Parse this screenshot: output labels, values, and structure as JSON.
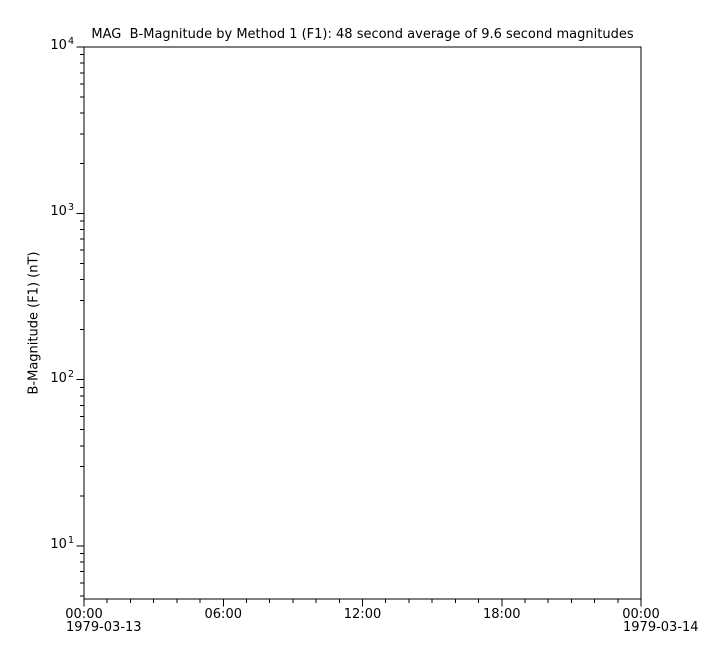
{
  "figure": {
    "background": "#ffffff",
    "axis_color": "#000000",
    "text_color": "#000000"
  },
  "chart_data": {
    "type": "line",
    "title": "MAG  B-Magnitude by Method 1 (F1): 48 second average of 9.6 second magnitudes",
    "xlabel": "",
    "ylabel": "B-Magnitude (F1) (nT)",
    "x_axis": {
      "start_date": "1979-03-13",
      "end_date": "1979-03-14",
      "range_hours": [
        0,
        24
      ],
      "minor_tick_every_hours": 1,
      "major_ticks": [
        {
          "hour": 0,
          "label": "00:00"
        },
        {
          "hour": 6,
          "label": "06:00"
        },
        {
          "hour": 12,
          "label": "12:00"
        },
        {
          "hour": 18,
          "label": "18:00"
        },
        {
          "hour": 24,
          "label": "00:00"
        }
      ],
      "date_labels": [
        {
          "hour": 0,
          "label": "1979-03-13"
        },
        {
          "hour": 24,
          "label": "1979-03-14"
        }
      ]
    },
    "y_axis": {
      "scale": "log",
      "ylim": [
        4.8,
        10000
      ],
      "major_exponents": [
        4,
        3,
        2,
        1
      ],
      "major_tick_base": "10",
      "minor_mantissas": [
        2,
        3,
        4,
        5,
        6,
        7,
        8,
        9
      ],
      "grid": false
    },
    "series": []
  }
}
